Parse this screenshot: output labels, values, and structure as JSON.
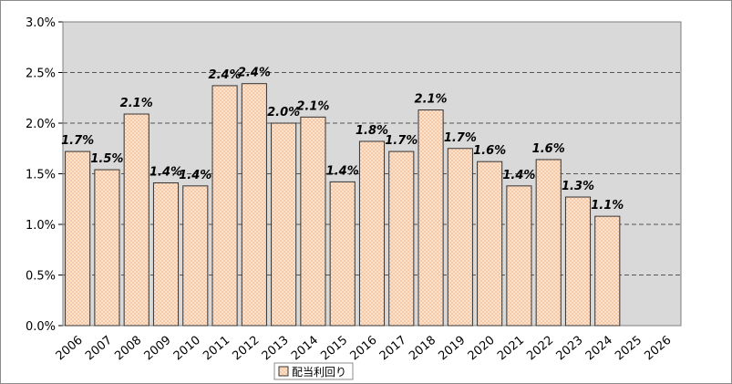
{
  "chart_data": {
    "type": "bar",
    "categories": [
      "2006",
      "2007",
      "2008",
      "2009",
      "2010",
      "2011",
      "2012",
      "2013",
      "2014",
      "2015",
      "2016",
      "2017",
      "2018",
      "2019",
      "2020",
      "2021",
      "2022",
      "2023",
      "2024",
      "2025",
      "2026"
    ],
    "series": [
      {
        "name": "配当利回り",
        "values": [
          1.72,
          1.54,
          2.09,
          1.41,
          1.38,
          2.37,
          2.39,
          2.0,
          2.06,
          1.42,
          1.82,
          1.72,
          2.13,
          1.75,
          1.62,
          1.38,
          1.64,
          1.27,
          1.08,
          null,
          null
        ],
        "labels": [
          "1.7%",
          "1.5%",
          "2.1%",
          "1.4%",
          "1.4%",
          "2.4%",
          "2.4%",
          "2.0%",
          "2.1%",
          "1.4%",
          "1.8%",
          "1.7%",
          "2.1%",
          "1.7%",
          "1.6%",
          "1.4%",
          "1.6%",
          "1.3%",
          "1.1%",
          "",
          ""
        ]
      }
    ],
    "y_ticks": [
      "0.0%",
      "0.5%",
      "1.0%",
      "1.5%",
      "2.0%",
      "2.5%",
      "3.0%"
    ],
    "ylim": [
      0,
      3.0
    ],
    "grid": "horizontal-dashed",
    "legend_position": "bottom",
    "colors": {
      "plot_bg": "#d9d9d9",
      "bar_fill": "#fde3cf",
      "bar_pattern": "#f7c9a5",
      "bar_stroke": "#333333",
      "grid": "#555555"
    }
  }
}
